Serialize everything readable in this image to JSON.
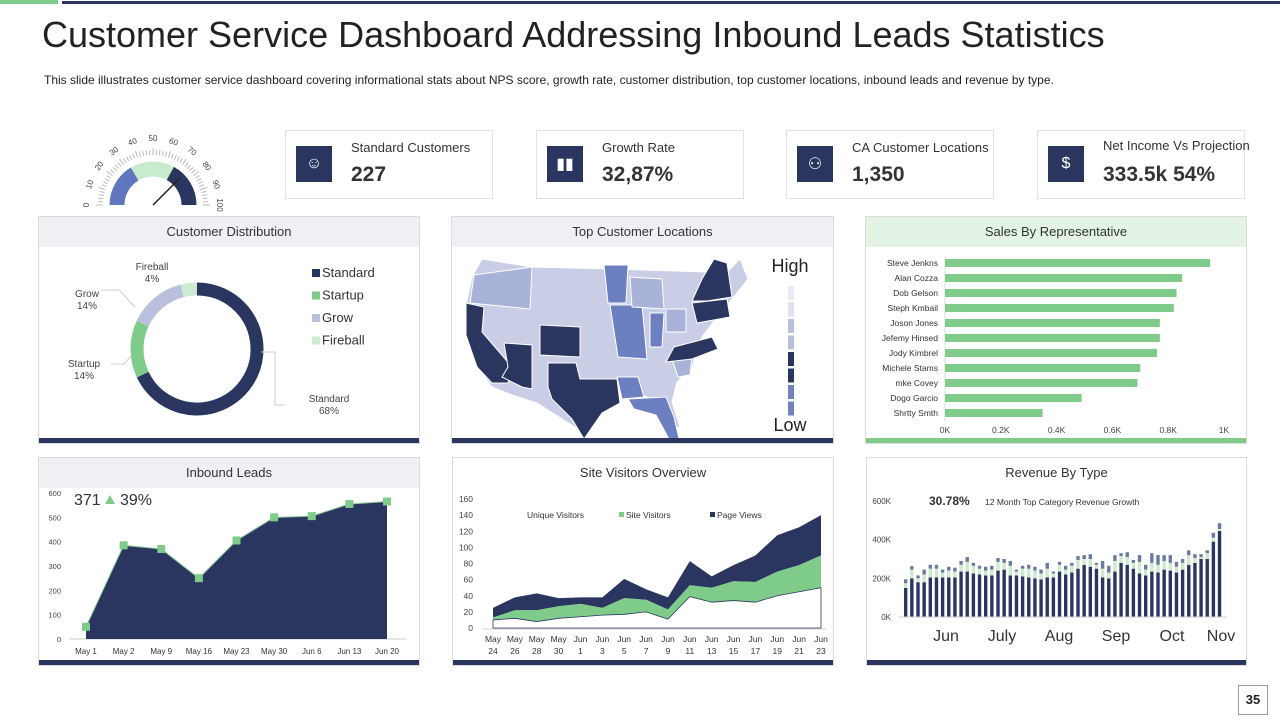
{
  "title": "Customer Service Dashboard Addressing Inbound Leads Statistics",
  "subtitle": "This slide illustrates customer service dashboard covering informational stats about NPS score, growth rate, customer distribution, top customer locations, inbound leads and revenue  by type.",
  "page_number": "35",
  "colors": {
    "navy": "#2b3660",
    "green": "#7fcb8a",
    "grow": "#b8c0dd",
    "fireball": "#cdebd0",
    "mid_blue": "#6b7fc1"
  },
  "gauge": {
    "ticks": [
      "0",
      "10",
      "20",
      "30",
      "40",
      "50",
      "60",
      "70",
      "80",
      "90",
      "100"
    ],
    "value": 75,
    "bands": [
      {
        "from": 0,
        "to": 33,
        "color": "#6177bd"
      },
      {
        "from": 33,
        "to": 66,
        "color": "#c9ebcd"
      },
      {
        "from": 66,
        "to": 100,
        "color": "#2b3660"
      }
    ]
  },
  "kpis": [
    {
      "label": "Standard Customers",
      "value": "227",
      "icon": "hand-user-icon"
    },
    {
      "label": "Growth Rate",
      "value": "32,87%",
      "icon": "bar-growth-icon"
    },
    {
      "label": "CA Customer Locations",
      "value": "1,350",
      "icon": "people-location-icon"
    },
    {
      "label": "Net Income Vs Projection",
      "value": "333.5k 54%",
      "icon": "hand-dollar-icon"
    }
  ],
  "chart_data": [
    {
      "type": "pie",
      "title": "Customer Distribution",
      "categories": [
        "Standard",
        "Startup",
        "Grow",
        "Fireball"
      ],
      "values": [
        68,
        14,
        14,
        4
      ],
      "labels": [
        "Standard\n68%",
        "Startup\n14%",
        "Grow\n14%",
        "Fireball\n4%"
      ],
      "colors": [
        "#2b3660",
        "#7fcb8a",
        "#b8c0dd",
        "#cdebd0"
      ],
      "legend": "right"
    },
    {
      "type": "heatmap",
      "title": "Top Customer Locations",
      "legend_high": "High",
      "legend_low": "Low"
    },
    {
      "type": "bar",
      "orientation": "horizontal",
      "title": "Sales By Representative",
      "categories": [
        "Steve Jenkns",
        "Alan Cozza",
        "Dob Gelson",
        "Steph Kmbail",
        "Joson Jones",
        "Jefemy Hinsed",
        "Jody Kimbrel",
        "Michele Stams",
        "mke Covey",
        "Dogo Garcio",
        "Shrtty Smth"
      ],
      "values": [
        950,
        850,
        830,
        820,
        770,
        770,
        760,
        700,
        690,
        490,
        350
      ],
      "xticks": [
        "0K",
        "0.2K",
        "0.4K",
        "0.6K",
        "0.8K",
        "1K"
      ],
      "xlim": [
        0,
        1000
      ],
      "color": "#7fcb8a"
    },
    {
      "type": "area",
      "title": "Inbound Leads",
      "headline": "371",
      "change": "39%",
      "categories": [
        "May 1",
        "May 2",
        "May 9",
        "May 16",
        "May 23",
        "May 30",
        "Jun 6",
        "Jun 13",
        "Jun 20"
      ],
      "values": [
        50,
        385,
        370,
        250,
        405,
        500,
        505,
        555,
        565
      ],
      "ylim": [
        0,
        600
      ],
      "yticks": [
        "0",
        "100",
        "200",
        "300",
        "400",
        "500",
        "600"
      ]
    },
    {
      "type": "area",
      "stacked": true,
      "title": "Site Visitors Overview",
      "categories": [
        [
          "May",
          "24"
        ],
        [
          "May",
          "26"
        ],
        [
          "May",
          "28"
        ],
        [
          "May",
          "30"
        ],
        [
          "Jun",
          "1"
        ],
        [
          "Jun",
          "3"
        ],
        [
          "Jun",
          "5"
        ],
        [
          "Jun",
          "7"
        ],
        [
          "Jun",
          "9"
        ],
        [
          "Jun",
          "11"
        ],
        [
          "Jun",
          "13"
        ],
        [
          "Jun",
          "15"
        ],
        [
          "Jun",
          "17"
        ],
        [
          "Jun",
          "19"
        ],
        [
          "Jun",
          "21"
        ],
        [
          "Jun",
          "23"
        ]
      ],
      "series": [
        {
          "name": "Unique Visitors",
          "color": "#ffffff",
          "values": [
            10,
            12,
            8,
            12,
            14,
            16,
            17,
            20,
            11,
            39,
            32,
            34,
            32,
            40,
            45,
            50
          ]
        },
        {
          "name": "Site Visitors",
          "color": "#7fcb8a",
          "values": [
            3,
            10,
            14,
            15,
            16,
            9,
            20,
            15,
            12,
            14,
            18,
            24,
            25,
            30,
            33,
            40
          ]
        },
        {
          "name": "Page Views",
          "color": "#2b3660",
          "values": [
            12,
            16,
            21,
            10,
            8,
            13,
            24,
            13,
            15,
            30,
            14,
            20,
            33,
            45,
            47,
            50
          ]
        }
      ],
      "ylim": [
        0,
        160
      ],
      "yticks": [
        "0",
        "20",
        "40",
        "60",
        "80",
        "100",
        "120",
        "140",
        "160"
      ]
    },
    {
      "type": "bar",
      "stacked": true,
      "title": "Revenue  By Type",
      "headline": "30.78%",
      "headline_caption": "12 Month Top Category Revenue Growth",
      "xticks": [
        "Jun",
        "July",
        "Aug",
        "Sep",
        "Oct",
        "Nov"
      ],
      "yticks": [
        "0K",
        "200K",
        "400K",
        "600K"
      ],
      "ylim": [
        0,
        600
      ],
      "series": [
        {
          "color": "#2b3660",
          "values": [
            150,
            200,
            180,
            180,
            205,
            205,
            205,
            205,
            205,
            235,
            235,
            225,
            220,
            215,
            215,
            240,
            245,
            215,
            215,
            210,
            205,
            200,
            195,
            205,
            205,
            235,
            220,
            230,
            250,
            270,
            260,
            250,
            205,
            200,
            235,
            280,
            270,
            250,
            225,
            215,
            235,
            230,
            245,
            240,
            230,
            245,
            270,
            280,
            300,
            300,
            390,
            445
          ]
        },
        {
          "color": "#cdebd0",
          "values": [
            25,
            45,
            20,
            40,
            45,
            45,
            25,
            35,
            30,
            35,
            50,
            40,
            30,
            25,
            30,
            45,
            35,
            50,
            20,
            40,
            45,
            40,
            30,
            45,
            20,
            35,
            25,
            35,
            45,
            30,
            40,
            20,
            45,
            30,
            55,
            35,
            40,
            30,
            60,
            30,
            45,
            40,
            45,
            40,
            30,
            35,
            50,
            25,
            10,
            30,
            20,
            10
          ]
        },
        {
          "color": "#6b7a9c",
          "values": [
            20,
            18,
            15,
            25,
            20,
            20,
            15,
            20,
            20,
            20,
            25,
            15,
            15,
            20,
            20,
            20,
            20,
            25,
            10,
            15,
            20,
            20,
            20,
            30,
            10,
            15,
            20,
            15,
            20,
            20,
            25,
            10,
            40,
            35,
            30,
            15,
            25,
            15,
            35,
            25,
            50,
            50,
            30,
            40,
            25,
            20,
            25,
            20,
            15,
            15,
            25,
            30
          ]
        }
      ]
    }
  ]
}
